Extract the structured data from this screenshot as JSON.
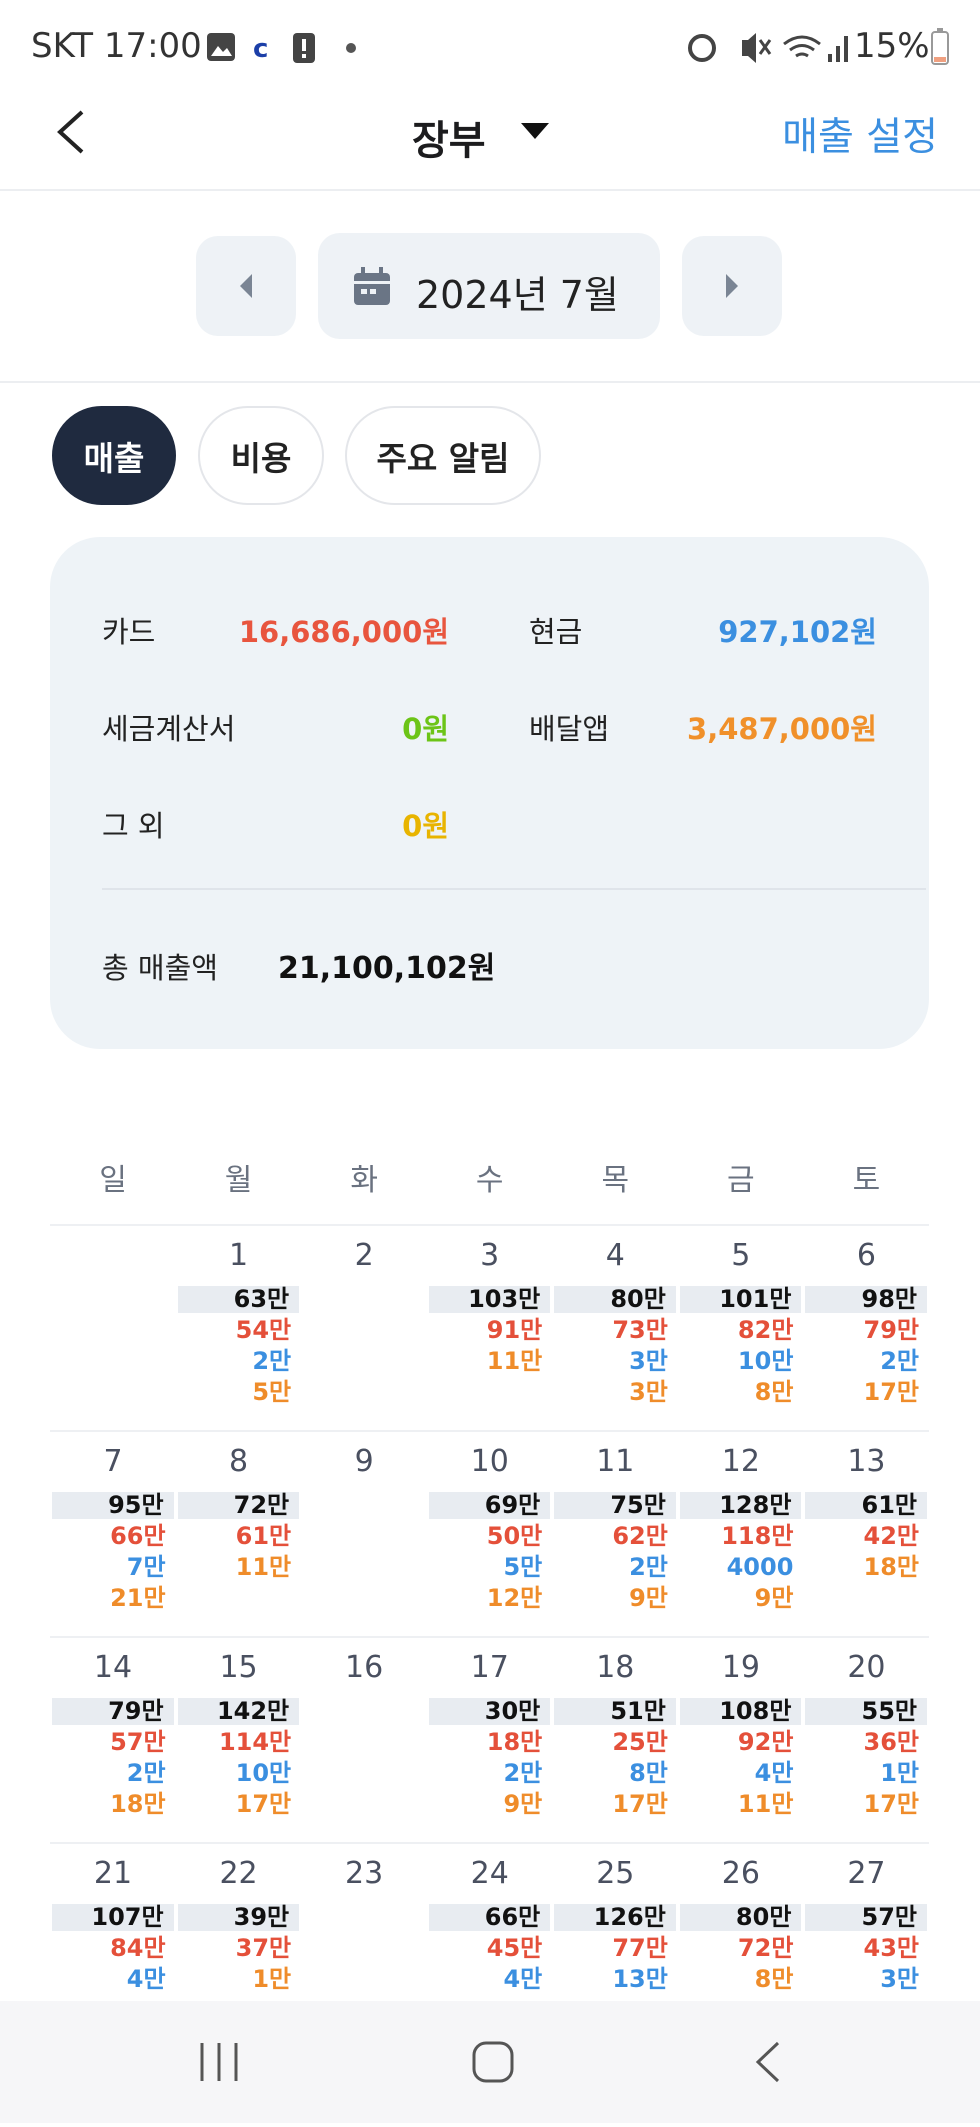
{
  "status_bar": {
    "carrier_time": "SKT 17:00",
    "battery": "15%"
  },
  "header": {
    "title": "장부",
    "action": "매출 설정"
  },
  "month_nav": {
    "label": "2024년 7월"
  },
  "tabs": [
    {
      "label": "매출",
      "active": true
    },
    {
      "label": "비용",
      "active": false
    },
    {
      "label": "주요 알림",
      "active": false
    }
  ],
  "summary": {
    "items": [
      {
        "label": "카드",
        "value": "16,686,000원",
        "color": "#e8553e"
      },
      {
        "label": "현금",
        "value": "927,102원",
        "color": "#3b8fe0"
      },
      {
        "label": "세금계산서",
        "value": "0원",
        "color": "#6cc417"
      },
      {
        "label": "배달앱",
        "value": "3,487,000원",
        "color": "#f0902a"
      },
      {
        "label": "그 외",
        "value": "0원",
        "color": "#e8b400"
      }
    ],
    "total": {
      "label": "총 매출액",
      "value": "21,100,102원"
    }
  },
  "calendar": {
    "weekdays": [
      "일",
      "월",
      "화",
      "수",
      "목",
      "금",
      "토"
    ],
    "weeks": [
      [
        {
          "day": null
        },
        {
          "day": 1,
          "total": "63만",
          "lines": [
            {
              "text": "54만",
              "color": "#e4503a"
            },
            {
              "text": "2만",
              "color": "#3b8fe0"
            },
            {
              "text": "5만",
              "color": "#ef8c2a"
            }
          ]
        },
        {
          "day": 2
        },
        {
          "day": 3,
          "total": "103만",
          "lines": [
            {
              "text": "91만",
              "color": "#e4503a"
            },
            {
              "text": "11만",
              "color": "#ef8c2a"
            }
          ]
        },
        {
          "day": 4,
          "total": "80만",
          "lines": [
            {
              "text": "73만",
              "color": "#e4503a"
            },
            {
              "text": "3만",
              "color": "#3b8fe0"
            },
            {
              "text": "3만",
              "color": "#ef8c2a"
            }
          ]
        },
        {
          "day": 5,
          "total": "101만",
          "lines": [
            {
              "text": "82만",
              "color": "#e4503a"
            },
            {
              "text": "10만",
              "color": "#3b8fe0"
            },
            {
              "text": "8만",
              "color": "#ef8c2a"
            }
          ]
        },
        {
          "day": 6,
          "total": "98만",
          "lines": [
            {
              "text": "79만",
              "color": "#e4503a"
            },
            {
              "text": "2만",
              "color": "#3b8fe0"
            },
            {
              "text": "17만",
              "color": "#ef8c2a"
            }
          ]
        }
      ],
      [
        {
          "day": 7,
          "total": "95만",
          "lines": [
            {
              "text": "66만",
              "color": "#e4503a"
            },
            {
              "text": "7만",
              "color": "#3b8fe0"
            },
            {
              "text": "21만",
              "color": "#ef8c2a"
            }
          ]
        },
        {
          "day": 8,
          "total": "72만",
          "lines": [
            {
              "text": "61만",
              "color": "#e4503a"
            },
            {
              "text": "11만",
              "color": "#ef8c2a"
            }
          ]
        },
        {
          "day": 9
        },
        {
          "day": 10,
          "total": "69만",
          "lines": [
            {
              "text": "50만",
              "color": "#e4503a"
            },
            {
              "text": "5만",
              "color": "#3b8fe0"
            },
            {
              "text": "12만",
              "color": "#ef8c2a"
            }
          ]
        },
        {
          "day": 11,
          "total": "75만",
          "lines": [
            {
              "text": "62만",
              "color": "#e4503a"
            },
            {
              "text": "2만",
              "color": "#3b8fe0"
            },
            {
              "text": "9만",
              "color": "#ef8c2a"
            }
          ]
        },
        {
          "day": 12,
          "total": "128만",
          "lines": [
            {
              "text": "118만",
              "color": "#e4503a"
            },
            {
              "text": "4000",
              "color": "#3b8fe0"
            },
            {
              "text": "9만",
              "color": "#ef8c2a"
            }
          ]
        },
        {
          "day": 13,
          "total": "61만",
          "lines": [
            {
              "text": "42만",
              "color": "#e4503a"
            },
            {
              "text": "18만",
              "color": "#ef8c2a"
            }
          ]
        }
      ],
      [
        {
          "day": 14,
          "total": "79만",
          "lines": [
            {
              "text": "57만",
              "color": "#e4503a"
            },
            {
              "text": "2만",
              "color": "#3b8fe0"
            },
            {
              "text": "18만",
              "color": "#ef8c2a"
            }
          ]
        },
        {
          "day": 15,
          "total": "142만",
          "lines": [
            {
              "text": "114만",
              "color": "#e4503a"
            },
            {
              "text": "10만",
              "color": "#3b8fe0"
            },
            {
              "text": "17만",
              "color": "#ef8c2a"
            }
          ]
        },
        {
          "day": 16
        },
        {
          "day": 17,
          "total": "30만",
          "lines": [
            {
              "text": "18만",
              "color": "#e4503a"
            },
            {
              "text": "2만",
              "color": "#3b8fe0"
            },
            {
              "text": "9만",
              "color": "#ef8c2a"
            }
          ]
        },
        {
          "day": 18,
          "total": "51만",
          "lines": [
            {
              "text": "25만",
              "color": "#e4503a"
            },
            {
              "text": "8만",
              "color": "#3b8fe0"
            },
            {
              "text": "17만",
              "color": "#ef8c2a"
            }
          ]
        },
        {
          "day": 19,
          "total": "108만",
          "lines": [
            {
              "text": "92만",
              "color": "#e4503a"
            },
            {
              "text": "4만",
              "color": "#3b8fe0"
            },
            {
              "text": "11만",
              "color": "#ef8c2a"
            }
          ]
        },
        {
          "day": 20,
          "total": "55만",
          "lines": [
            {
              "text": "36만",
              "color": "#e4503a"
            },
            {
              "text": "1만",
              "color": "#3b8fe0"
            },
            {
              "text": "17만",
              "color": "#ef8c2a"
            }
          ]
        }
      ],
      [
        {
          "day": 21,
          "total": "107만",
          "lines": [
            {
              "text": "84만",
              "color": "#e4503a"
            },
            {
              "text": "4만",
              "color": "#3b8fe0"
            }
          ]
        },
        {
          "day": 22,
          "total": "39만",
          "lines": [
            {
              "text": "37만",
              "color": "#e4503a"
            },
            {
              "text": "1만",
              "color": "#ef8c2a"
            }
          ]
        },
        {
          "day": 23
        },
        {
          "day": 24,
          "total": "66만",
          "lines": [
            {
              "text": "45만",
              "color": "#e4503a"
            },
            {
              "text": "4만",
              "color": "#3b8fe0"
            }
          ]
        },
        {
          "day": 25,
          "total": "126만",
          "lines": [
            {
              "text": "77만",
              "color": "#e4503a"
            },
            {
              "text": "13만",
              "color": "#3b8fe0"
            }
          ]
        },
        {
          "day": 26,
          "total": "80만",
          "lines": [
            {
              "text": "72만",
              "color": "#e4503a"
            },
            {
              "text": "8만",
              "color": "#ef8c2a"
            }
          ]
        },
        {
          "day": 27,
          "total": "57만",
          "lines": [
            {
              "text": "43만",
              "color": "#e4503a"
            },
            {
              "text": "3만",
              "color": "#3b8fe0"
            }
          ]
        }
      ]
    ]
  }
}
